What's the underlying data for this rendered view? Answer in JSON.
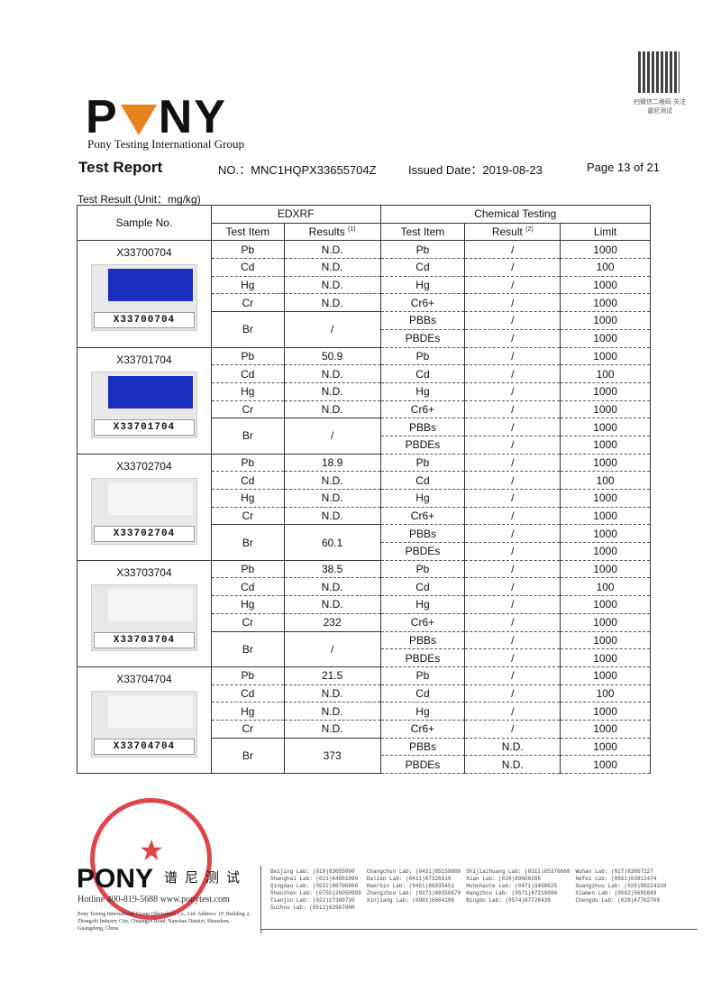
{
  "header": {
    "logo": "PONY",
    "group": "Pony Testing International Group",
    "qr_caption": "扫微信二维码 关注谱尼测试",
    "title": "Test Report",
    "report_no": "NO.：MNC1HQPX33655704Z",
    "issued": "Issued Date：2019-08-23",
    "page": "Page 13 of 21"
  },
  "unit_label": "Test Result (Unit：mg/kg)",
  "table": {
    "sample_header": "Sample No.",
    "edxrf": "EDXRF",
    "chem": "Chemical Testing",
    "test_item": "Test Item",
    "results": "Results",
    "results_note": "(1)",
    "result": "Result",
    "result_note": "(2)",
    "limit": "Limit",
    "samples": [
      {
        "no": "X33700704",
        "swatch": "#1a2ec0",
        "edxrf": [
          [
            "Pb",
            "N.D."
          ],
          [
            "Cd",
            "N.D."
          ],
          [
            "Hg",
            "N.D."
          ],
          [
            "Cr",
            "N.D."
          ],
          [
            "Br",
            "/"
          ]
        ],
        "chem": [
          [
            "Pb",
            "/",
            "1000"
          ],
          [
            "Cd",
            "/",
            "100"
          ],
          [
            "Hg",
            "/",
            "1000"
          ],
          [
            "Cr6+",
            "/",
            "1000"
          ],
          [
            "PBBs",
            "/",
            "1000"
          ],
          [
            "PBDEs",
            "/",
            "1000"
          ]
        ]
      },
      {
        "no": "X33701704",
        "swatch": "#1a2ec0",
        "edxrf": [
          [
            "Pb",
            "50.9"
          ],
          [
            "Cd",
            "N.D."
          ],
          [
            "Hg",
            "N.D."
          ],
          [
            "Cr",
            "N.D."
          ],
          [
            "Br",
            "/"
          ]
        ],
        "chem": [
          [
            "Pb",
            "/",
            "1000"
          ],
          [
            "Cd",
            "/",
            "100"
          ],
          [
            "Hg",
            "/",
            "1000"
          ],
          [
            "Cr6+",
            "/",
            "1000"
          ],
          [
            "PBBs",
            "/",
            "1000"
          ],
          [
            "PBDEs",
            "/",
            "1000"
          ]
        ]
      },
      {
        "no": "X33702704",
        "swatch": "#f4f4f4",
        "edxrf": [
          [
            "Pb",
            "18.9"
          ],
          [
            "Cd",
            "N.D."
          ],
          [
            "Hg",
            "N.D."
          ],
          [
            "Cr",
            "N.D."
          ],
          [
            "Br",
            "60.1"
          ]
        ],
        "chem": [
          [
            "Pb",
            "/",
            "1000"
          ],
          [
            "Cd",
            "/",
            "100"
          ],
          [
            "Hg",
            "/",
            "1000"
          ],
          [
            "Cr6+",
            "/",
            "1000"
          ],
          [
            "PBBs",
            "/",
            "1000"
          ],
          [
            "PBDEs",
            "/",
            "1000"
          ]
        ]
      },
      {
        "no": "X33703704",
        "swatch": "#f4f4f4",
        "edxrf": [
          [
            "Pb",
            "38.5"
          ],
          [
            "Cd",
            "N.D."
          ],
          [
            "Hg",
            "N.D."
          ],
          [
            "Cr",
            "232"
          ],
          [
            "Br",
            "/"
          ]
        ],
        "chem": [
          [
            "Pb",
            "/",
            "1000"
          ],
          [
            "Cd",
            "/",
            "100"
          ],
          [
            "Hg",
            "/",
            "1000"
          ],
          [
            "Cr6+",
            "/",
            "1000"
          ],
          [
            "PBBs",
            "/",
            "1000"
          ],
          [
            "PBDEs",
            "/",
            "1000"
          ]
        ]
      },
      {
        "no": "X33704704",
        "swatch": "#f4f4f4",
        "edxrf": [
          [
            "Pb",
            "21.5"
          ],
          [
            "Cd",
            "N.D."
          ],
          [
            "Hg",
            "N.D."
          ],
          [
            "Cr",
            "N.D."
          ],
          [
            "Br",
            "373"
          ]
        ],
        "chem": [
          [
            "Pb",
            "/",
            "1000"
          ],
          [
            "Cd",
            "/",
            "100"
          ],
          [
            "Hg",
            "/",
            "1000"
          ],
          [
            "Cr6+",
            "/",
            "1000"
          ],
          [
            "PBBs",
            "N.D.",
            "1000"
          ],
          [
            "PBDEs",
            "N.D.",
            "1000"
          ]
        ]
      }
    ]
  },
  "footer": {
    "logo": "PONY",
    "cn": "谱尼测试",
    "stamp": "PONY TESTING",
    "hotline": "Hotline 400-819-5688 www.ponytest.com",
    "address": "Pony Testing International Group (Shenzhen) Co., Ltd. Address: 1F, Building 2, Zhongzhi Industry City, Chuangye Road, Nanshan District, Shenzhen, Guangdong, China",
    "labs": [
      "Beijing Lab: (010)83055000",
      "Changchun Lab: (0431)85159606",
      "Shijiazhuang Lab: (0311)85376668",
      "Wuhan Lab: (027)83867127",
      "",
      "Shanghai Lab: (021)64851999",
      "Dalian Lab: (0411)87326618",
      "Xian Lab: (029)89608285",
      "Hefei Lab: (0551)63812474",
      "",
      "Qingdao Lab: (0532)88706866",
      "Haerbin Lab: (0451)86035451",
      "Huhehaote Lab: (0471)3450025",
      "Guangzhou Lab: (020)89224310",
      "",
      "Shenzhen Lab: (0755)26050909",
      "Zhengzhou Lab: (0371)69350670",
      "Hangzhou Lab: (0571)87219096",
      "Xiamen Lab: (0592)5685049",
      "",
      "Tianjin Lab: (022)27380730",
      "Xinjiang Lab: (0991)6684186",
      "Ningbo Lab: (0574)87726439",
      "Chengdu Lab: (028)87762708",
      "",
      "Suzhou Lab: (0512)62997900"
    ]
  }
}
